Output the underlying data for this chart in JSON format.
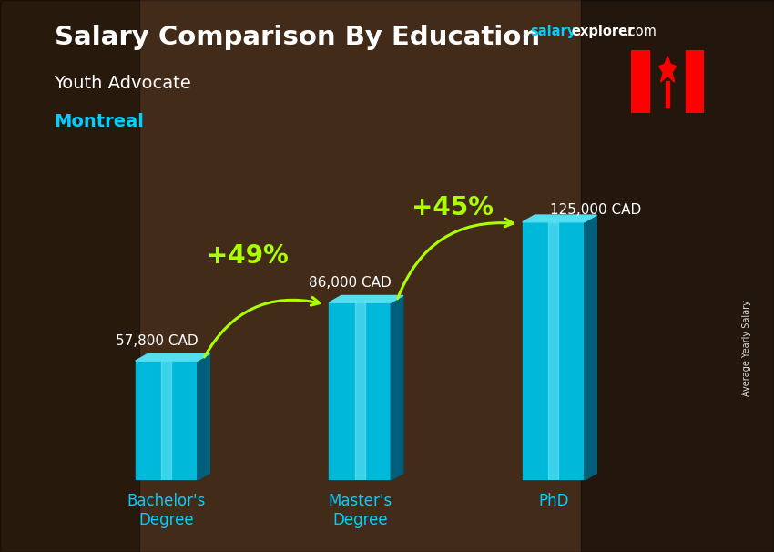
{
  "title_line1": "Salary Comparison By Education",
  "subtitle1": "Youth Advocate",
  "subtitle2": "Montreal",
  "categories": [
    "Bachelor's\nDegree",
    "Master's\nDegree",
    "PhD"
  ],
  "values": [
    57800,
    86000,
    125000
  ],
  "labels": [
    "57,800 CAD",
    "86,000 CAD",
    "125,000 CAD"
  ],
  "pct_labels": [
    "+49%",
    "+45%"
  ],
  "bar_color_front": "#00b8d9",
  "bar_color_top": "#55ddf0",
  "bar_color_side": "#005f7a",
  "bar_stripe": "#88eeff",
  "title_color": "#ffffff",
  "subtitle1_color": "#ffffff",
  "subtitle2_color": "#00cfff",
  "label_color": "#ffffff",
  "pct_color": "#aaff00",
  "arrow_color": "#aaff00",
  "xtick_color": "#00cfff",
  "axis_label": "Average Yearly Salary",
  "site_color_salary": "#00cfff",
  "site_color_explorer": "#ffffff",
  "bar_width": 0.32,
  "xlim": [
    -0.5,
    2.7
  ],
  "ylim": [
    0,
    155000
  ],
  "bar_positions": [
    0,
    1,
    2
  ]
}
